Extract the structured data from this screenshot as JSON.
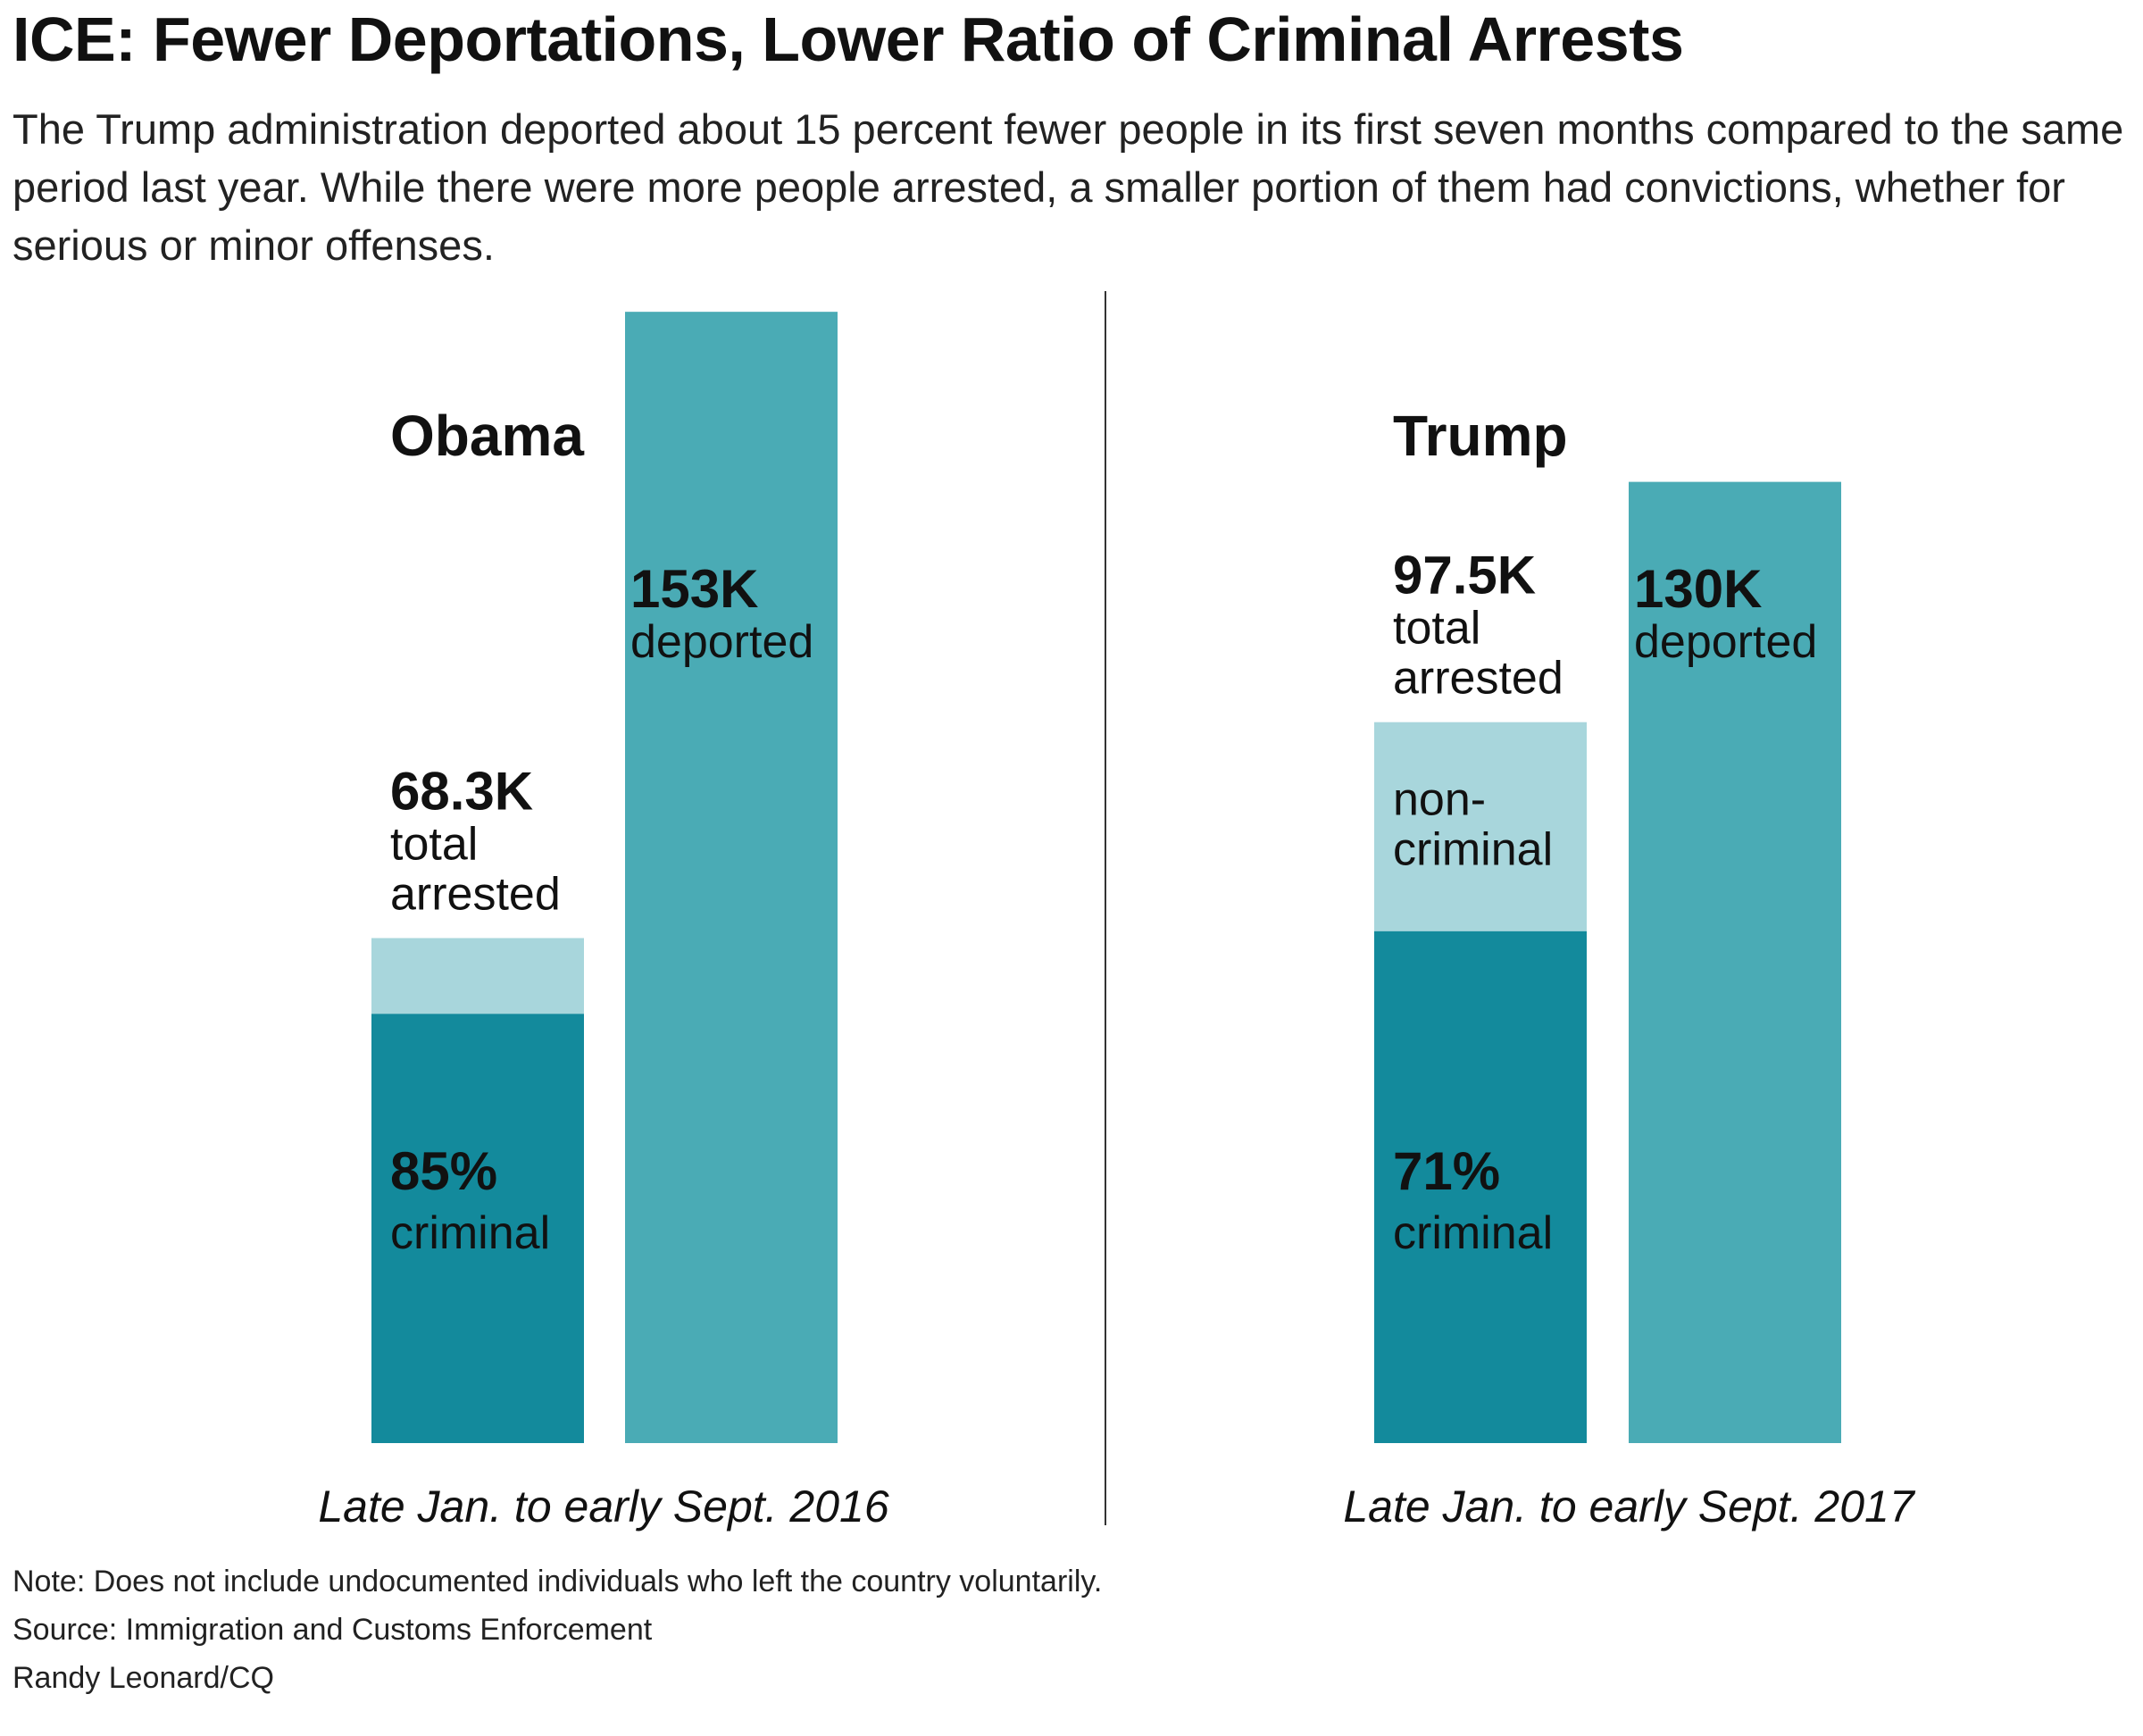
{
  "title": "ICE: Fewer Deportations, Lower Ratio of Criminal Arrests",
  "subtitle": "The Trump administration deported about 15 percent fewer people in its first seven months compared to the same period last year. While there were more people arrested, a smaller portion of them had convictions, whether for serious or minor offenses.",
  "notes": {
    "note": "Note: Does not include undocumented individuals who left the country voluntarily.",
    "source": "Source:  Immigration and Customs Enforcement",
    "credit": "Randy Leonard/CQ"
  },
  "colors": {
    "criminal": "#138a9c",
    "noncriminal": "#a8d6dc",
    "deported": "#4aabb5",
    "divider": "#333333"
  },
  "chart_data": [
    {
      "type": "bar",
      "title": "Obama",
      "period": "Late Jan. to early Sept. 2016",
      "arrested": {
        "value": 68.3,
        "value_label": "68.3K",
        "label_lines": [
          "total",
          "arrested"
        ],
        "criminal_pct": 85,
        "criminal_pct_label": "85%",
        "criminal_label": "criminal",
        "noncriminal_label_lines": []
      },
      "deported": {
        "value": 153,
        "value_label": "153K",
        "label": "deported"
      }
    },
    {
      "type": "bar",
      "title": "Trump",
      "period": "Late Jan. to early Sept. 2017",
      "arrested": {
        "value": 97.5,
        "value_label": "97.5K",
        "label_lines": [
          "total",
          "arrested"
        ],
        "criminal_pct": 71,
        "criminal_pct_label": "71%",
        "criminal_label": "criminal",
        "noncriminal_label_lines": [
          "non-",
          "criminal"
        ]
      },
      "deported": {
        "value": 130,
        "value_label": "130K",
        "label": "deported"
      }
    }
  ]
}
